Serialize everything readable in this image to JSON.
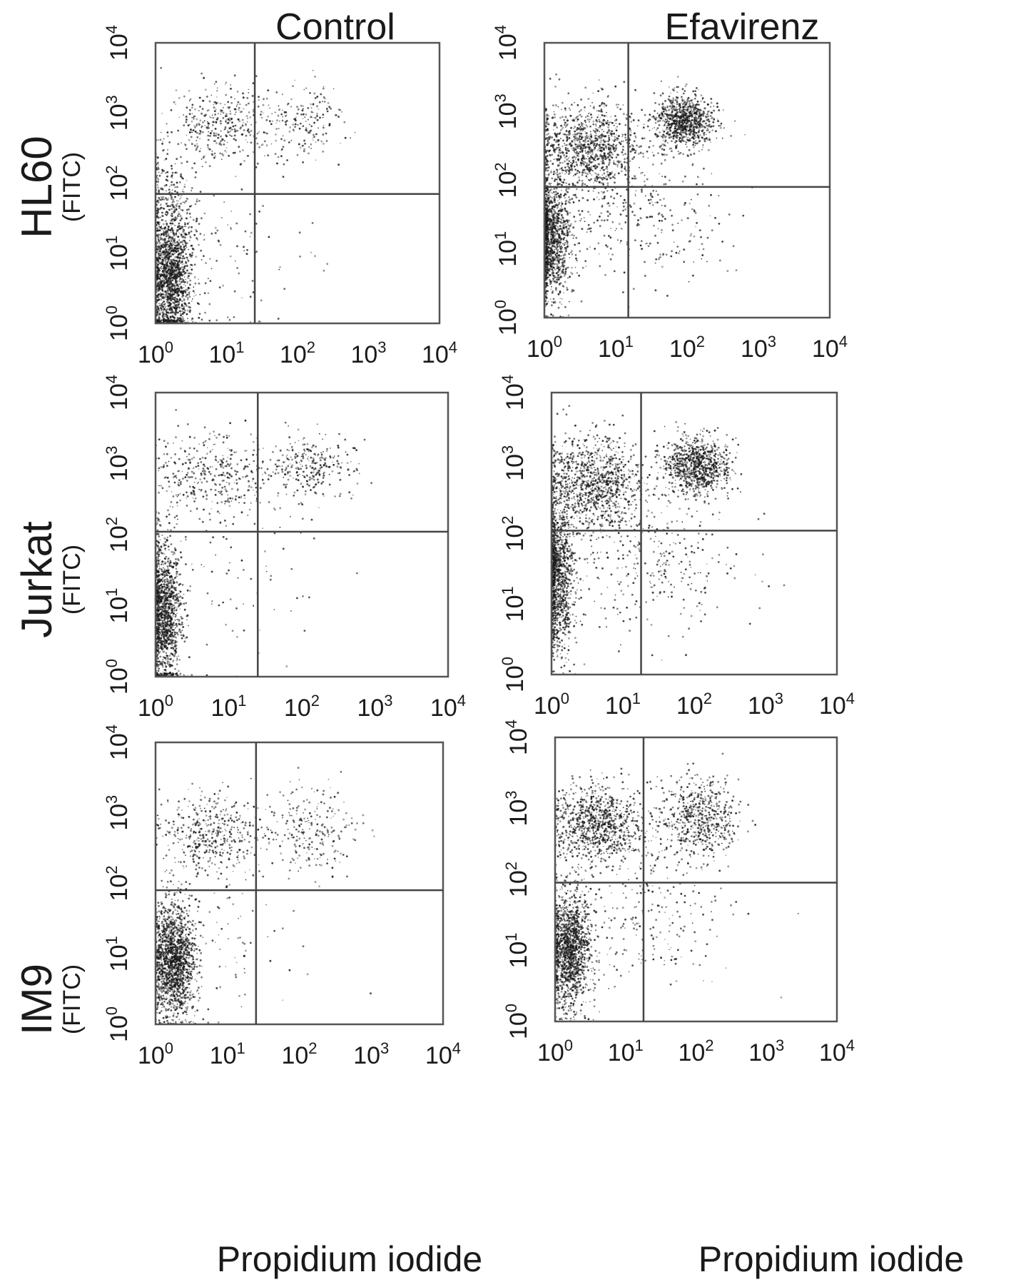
{
  "columns": [
    "Control",
    "Efavirenz"
  ],
  "rows": [
    {
      "name": "HL60",
      "unit": "(FITC)"
    },
    {
      "name": "Jurkat",
      "unit": "(FITC)"
    },
    {
      "name": "IM9",
      "unit": "(FITC)"
    }
  ],
  "x_axis_label": "Propidium iodide",
  "colors": {
    "points": "#1a1a1a",
    "frame": "#555555",
    "gate": "#444444",
    "background": "#ffffff"
  },
  "chart_data": [
    {
      "type": "scatter",
      "row": "HL60",
      "column": "Control",
      "xlabel": "Propidium iodide",
      "ylabel": "(FITC)",
      "x_scale": "log",
      "y_scale": "log",
      "xlim": [
        1,
        10000
      ],
      "ylim": [
        1,
        10000
      ],
      "tick_labels": [
        "10^0",
        "10^1",
        "10^2",
        "10^3",
        "10^4"
      ],
      "gate": {
        "x": 25,
        "y": 70
      },
      "clusters": [
        {
          "x": 1.6,
          "y": 4,
          "sx": 0.15,
          "sy": 0.45,
          "n": 1500
        },
        {
          "x": 1.6,
          "y": 40,
          "sx": 0.18,
          "sy": 0.4,
          "n": 350
        },
        {
          "x": 8,
          "y": 700,
          "sx": 0.35,
          "sy": 0.25,
          "n": 380
        },
        {
          "x": 120,
          "y": 800,
          "sx": 0.3,
          "sy": 0.25,
          "n": 180
        },
        {
          "x": 12,
          "y": 10,
          "sx": 0.6,
          "sy": 0.6,
          "n": 90
        }
      ]
    },
    {
      "type": "scatter",
      "row": "HL60",
      "column": "Efavirenz",
      "xlabel": "Propidium iodide",
      "ylabel": "(FITC)",
      "x_scale": "log",
      "y_scale": "log",
      "xlim": [
        1,
        10000
      ],
      "ylim": [
        1,
        10000
      ],
      "tick_labels": [
        "10^0",
        "10^1",
        "10^2",
        "10^3",
        "10^4"
      ],
      "gate": {
        "x": 15,
        "y": 80
      },
      "clusters": [
        {
          "x": 1.2,
          "y": 15,
          "sx": 0.14,
          "sy": 0.45,
          "n": 1200
        },
        {
          "x": 4,
          "y": 300,
          "sx": 0.35,
          "sy": 0.35,
          "n": 1100
        },
        {
          "x": 90,
          "y": 700,
          "sx": 0.2,
          "sy": 0.2,
          "n": 900
        },
        {
          "x": 20,
          "y": 30,
          "sx": 0.6,
          "sy": 0.5,
          "n": 300
        }
      ]
    },
    {
      "type": "scatter",
      "row": "Jurkat",
      "column": "Control",
      "xlabel": "Propidium iodide",
      "ylabel": "(FITC)",
      "x_scale": "log",
      "y_scale": "log",
      "xlim": [
        1,
        10000
      ],
      "ylim": [
        1,
        10000
      ],
      "tick_labels": [
        "10^0",
        "10^1",
        "10^2",
        "10^3",
        "10^4"
      ],
      "gate": {
        "x": 25,
        "y": 110
      },
      "clusters": [
        {
          "x": 1.3,
          "y": 8,
          "sx": 0.12,
          "sy": 0.5,
          "n": 1400
        },
        {
          "x": 6,
          "y": 700,
          "sx": 0.4,
          "sy": 0.3,
          "n": 380
        },
        {
          "x": 130,
          "y": 900,
          "sx": 0.3,
          "sy": 0.22,
          "n": 280
        },
        {
          "x": 15,
          "y": 30,
          "sx": 0.6,
          "sy": 0.6,
          "n": 80
        }
      ]
    },
    {
      "type": "scatter",
      "row": "Jurkat",
      "column": "Efavirenz",
      "xlabel": "Propidium iodide",
      "ylabel": "(FITC)",
      "x_scale": "log",
      "y_scale": "log",
      "xlim": [
        1,
        10000
      ],
      "ylim": [
        1,
        10000
      ],
      "tick_labels": [
        "10^0",
        "10^1",
        "10^2",
        "10^3",
        "10^4"
      ],
      "gate": {
        "x": 18,
        "y": 110
      },
      "clusters": [
        {
          "x": 1.2,
          "y": 25,
          "sx": 0.12,
          "sy": 0.55,
          "n": 1200
        },
        {
          "x": 4,
          "y": 500,
          "sx": 0.35,
          "sy": 0.35,
          "n": 1100
        },
        {
          "x": 110,
          "y": 900,
          "sx": 0.22,
          "sy": 0.2,
          "n": 900
        },
        {
          "x": 30,
          "y": 40,
          "sx": 0.6,
          "sy": 0.5,
          "n": 300
        }
      ]
    },
    {
      "type": "scatter",
      "row": "IM9",
      "column": "Control",
      "xlabel": "Propidium iodide",
      "ylabel": "(FITC)",
      "x_scale": "log",
      "y_scale": "log",
      "xlim": [
        1,
        10000
      ],
      "ylim": [
        1,
        10000
      ],
      "tick_labels": [
        "10^0",
        "10^1",
        "10^2",
        "10^3",
        "10^4"
      ],
      "gate": {
        "x": 25,
        "y": 80
      },
      "clusters": [
        {
          "x": 1.8,
          "y": 8,
          "sx": 0.15,
          "sy": 0.4,
          "n": 1600
        },
        {
          "x": 6,
          "y": 500,
          "sx": 0.35,
          "sy": 0.3,
          "n": 450
        },
        {
          "x": 160,
          "y": 600,
          "sx": 0.3,
          "sy": 0.3,
          "n": 230
        },
        {
          "x": 12,
          "y": 20,
          "sx": 0.6,
          "sy": 0.5,
          "n": 90
        }
      ]
    },
    {
      "type": "scatter",
      "row": "IM9",
      "column": "Efavirenz",
      "xlabel": "Propidium iodide",
      "ylabel": "(FITC)",
      "x_scale": "log",
      "y_scale": "log",
      "xlim": [
        1,
        10000
      ],
      "ylim": [
        1,
        10000
      ],
      "tick_labels": [
        "10^0",
        "10^1",
        "10^2",
        "10^3",
        "10^4"
      ],
      "gate": {
        "x": 18,
        "y": 90
      },
      "clusters": [
        {
          "x": 1.6,
          "y": 10,
          "sx": 0.15,
          "sy": 0.4,
          "n": 1400
        },
        {
          "x": 4,
          "y": 600,
          "sx": 0.3,
          "sy": 0.28,
          "n": 900
        },
        {
          "x": 110,
          "y": 700,
          "sx": 0.28,
          "sy": 0.28,
          "n": 600
        },
        {
          "x": 20,
          "y": 30,
          "sx": 0.6,
          "sy": 0.5,
          "n": 250
        }
      ]
    }
  ]
}
